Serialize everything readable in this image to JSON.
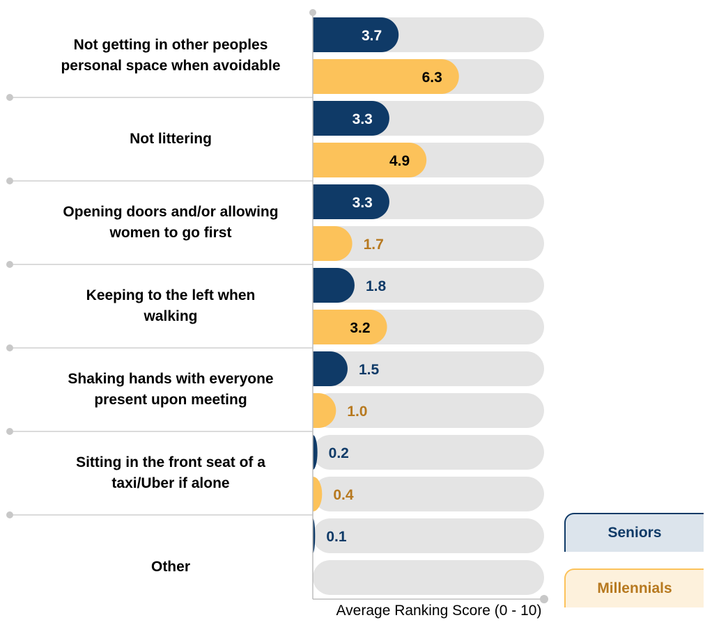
{
  "chart_data": {
    "type": "bar",
    "orientation": "horizontal",
    "xlabel": "Average Ranking Score (0 - 10)",
    "xlim": [
      0,
      10
    ],
    "categories": [
      "Not getting in other peoples personal space when avoidable",
      "Not littering",
      "Opening doors and/or allowing women to go first",
      "Keeping to the left when walking",
      "Shaking hands with everyone present upon meeting",
      "Sitting in the front seat of a taxi/Uber if alone",
      "Other"
    ],
    "series": [
      {
        "name": "Seniors",
        "color": "#0f3a67",
        "values": [
          3.7,
          3.3,
          3.3,
          1.8,
          1.5,
          0.2,
          0.1
        ]
      },
      {
        "name": "Millennials",
        "color": "#fcc25a",
        "label_color": "#b7791f",
        "values": [
          6.3,
          4.9,
          1.7,
          3.2,
          1.0,
          0.4,
          null
        ]
      }
    ],
    "value_labels": {
      "Seniors": [
        "3.7",
        "3.3",
        "3.3",
        "1.8",
        "1.5",
        "0.2",
        "0.1"
      ],
      "Millennials": [
        "6.3",
        "4.9",
        "1.7",
        "3.2",
        "1.0",
        "0.4",
        ""
      ]
    },
    "legend": {
      "position": "right",
      "items": [
        "Seniors",
        "Millennials"
      ]
    },
    "background_track_color": "#e4e4e4",
    "grid": false
  }
}
